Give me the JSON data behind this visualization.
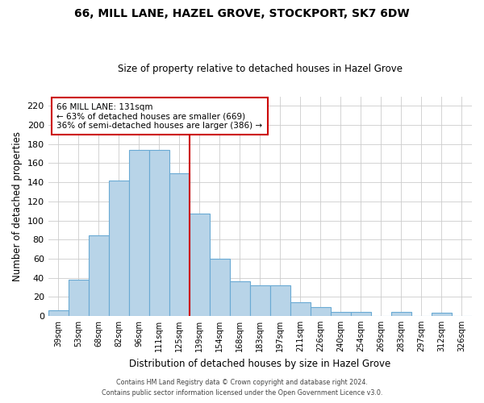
{
  "title": "66, MILL LANE, HAZEL GROVE, STOCKPORT, SK7 6DW",
  "subtitle": "Size of property relative to detached houses in Hazel Grove",
  "xlabel": "Distribution of detached houses by size in Hazel Grove",
  "ylabel": "Number of detached properties",
  "bar_labels": [
    "39sqm",
    "53sqm",
    "68sqm",
    "82sqm",
    "96sqm",
    "111sqm",
    "125sqm",
    "139sqm",
    "154sqm",
    "168sqm",
    "183sqm",
    "197sqm",
    "211sqm",
    "226sqm",
    "240sqm",
    "254sqm",
    "269sqm",
    "283sqm",
    "297sqm",
    "312sqm",
    "326sqm"
  ],
  "bar_values": [
    6,
    38,
    84,
    142,
    174,
    174,
    149,
    107,
    60,
    36,
    32,
    32,
    14,
    9,
    4,
    4,
    0,
    4,
    0,
    3,
    0
  ],
  "bar_color": "#b8d4e8",
  "bar_edge_color": "#6aaad4",
  "vline_x_index": 6,
  "annotation_text_line1": "66 MILL LANE: 131sqm",
  "annotation_text_line2": "← 63% of detached houses are smaller (669)",
  "annotation_text_line3": "36% of semi-detached houses are larger (386) →",
  "annotation_box_color": "#ffffff",
  "annotation_box_edge": "#cc0000",
  "vline_color": "#cc0000",
  "ylim": [
    0,
    230
  ],
  "yticks": [
    0,
    20,
    40,
    60,
    80,
    100,
    120,
    140,
    160,
    180,
    200,
    220
  ],
  "footer_line1": "Contains HM Land Registry data © Crown copyright and database right 2024.",
  "footer_line2": "Contains public sector information licensed under the Open Government Licence v3.0.",
  "background_color": "#ffffff",
  "grid_color": "#cccccc"
}
